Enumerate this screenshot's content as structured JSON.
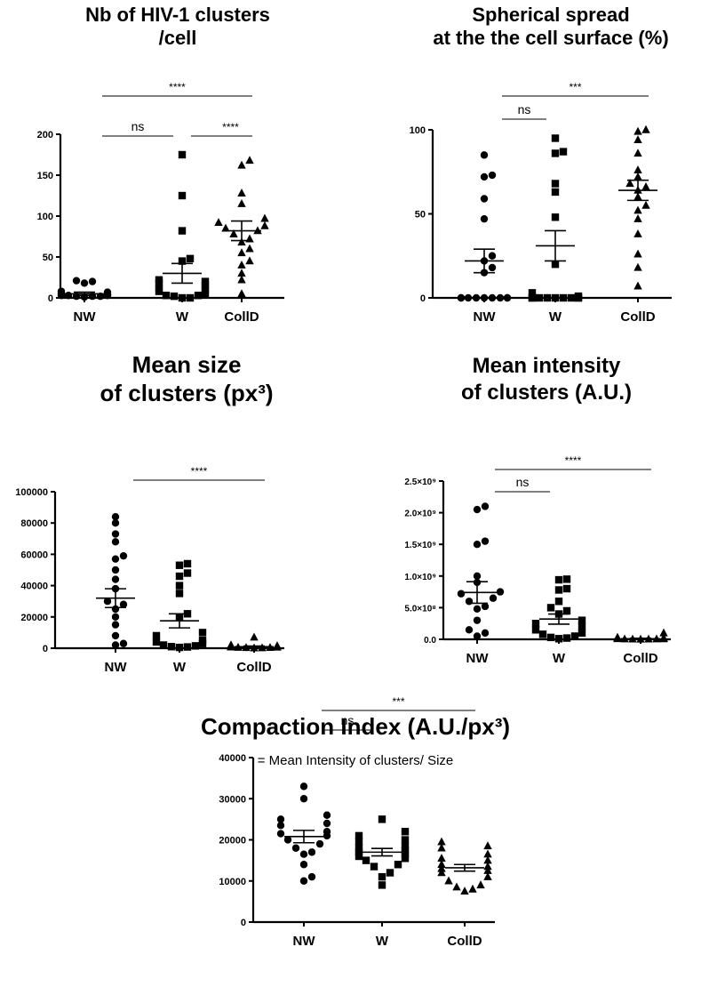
{
  "chart_data": [
    {
      "type": "scatter",
      "title_lines": [
        "Nb of HIV-1 clusters",
        "/cell"
      ],
      "categories": [
        "NW",
        "W",
        "CollD"
      ],
      "y_ticks": [
        "0",
        "50",
        "100",
        "150",
        "200"
      ],
      "ylim": [
        0,
        200
      ],
      "series": [
        {
          "values": [
            2,
            3,
            4,
            5,
            6,
            20,
            21,
            18,
            8,
            3,
            2,
            5,
            4,
            7,
            3,
            2,
            1,
            4
          ],
          "marker": "circle",
          "mean": 5,
          "sem": 2
        },
        {
          "values": [
            175,
            125,
            82,
            48,
            45,
            22,
            20,
            18,
            15,
            12,
            10,
            8,
            5,
            3,
            3,
            2,
            0,
            0
          ],
          "marker": "square",
          "mean": 30,
          "sem": 12
        },
        {
          "values": [
            168,
            162,
            128,
            115,
            97,
            92,
            88,
            85,
            82,
            78,
            72,
            68,
            60,
            55,
            45,
            40,
            30,
            22,
            5
          ],
          "marker": "triangle",
          "mean": 82,
          "sem": 12
        }
      ],
      "significance": [
        {
          "from": 0,
          "to": 2,
          "label": "****"
        },
        {
          "from": 0,
          "to": 1,
          "label": "ns"
        },
        {
          "from": 1,
          "to": 2,
          "label": "****"
        }
      ]
    },
    {
      "type": "scatter",
      "title_lines": [
        "Spherical spread",
        "at the the cell surface (%)"
      ],
      "categories": [
        "NW",
        "W",
        "CollD"
      ],
      "y_ticks": [
        "0",
        "50",
        "100"
      ],
      "ylim": [
        0,
        100
      ],
      "series": [
        {
          "values": [
            85,
            73,
            72,
            59,
            47,
            25,
            22,
            18,
            15,
            0,
            0,
            0,
            0,
            0,
            0,
            0,
            0,
            0
          ],
          "marker": "circle",
          "mean": 22,
          "sem": 7
        },
        {
          "values": [
            95,
            87,
            86,
            68,
            63,
            48,
            20,
            3,
            1,
            0,
            0,
            0,
            0,
            0,
            0,
            0,
            0,
            0
          ],
          "marker": "square",
          "mean": 31,
          "sem": 9
        },
        {
          "values": [
            100,
            99,
            94,
            86,
            76,
            72,
            68,
            66,
            64,
            60,
            55,
            52,
            47,
            38,
            26,
            18,
            7
          ],
          "marker": "triangle",
          "mean": 64,
          "sem": 6
        }
      ],
      "significance": [
        {
          "from": 0,
          "to": 2,
          "label": "***"
        },
        {
          "from": 0,
          "to": 1,
          "label": "ns"
        }
      ]
    },
    {
      "type": "scatter",
      "title_lines": [
        "Mean size",
        "of clusters (px³)"
      ],
      "categories": [
        "NW",
        "W",
        "CollD"
      ],
      "y_ticks": [
        "0",
        "20000",
        "40000",
        "60000",
        "80000",
        "100000"
      ],
      "ylim": [
        0,
        100000
      ],
      "series": [
        {
          "values": [
            84000,
            80000,
            73000,
            68000,
            59000,
            57000,
            50000,
            44000,
            38000,
            30000,
            28000,
            25000,
            20000,
            15000,
            8000,
            3000,
            2000
          ],
          "marker": "circle",
          "mean": 32000,
          "sem": 6000
        },
        {
          "values": [
            54000,
            53000,
            48000,
            46000,
            40000,
            35000,
            22000,
            20000,
            10000,
            8000,
            5000,
            4000,
            3000,
            2000,
            1500,
            1000,
            800,
            500
          ],
          "marker": "square",
          "mean": 17500,
          "sem": 4500
        },
        {
          "values": [
            7000,
            2000,
            1500,
            1200,
            1000,
            900,
            800,
            700,
            600,
            500,
            400,
            300,
            200,
            100
          ],
          "marker": "triangle",
          "mean": 1000,
          "sem": 400
        }
      ],
      "significance": [
        {
          "from": 0,
          "to": 2,
          "label": "****"
        }
      ]
    },
    {
      "type": "scatter",
      "title_lines": [
        "Mean intensity",
        "of clusters (A.U.)"
      ],
      "categories": [
        "NW",
        "W",
        "CollD"
      ],
      "y_ticks": [
        "0.0",
        "5.0×10⁸",
        "1.0×10⁹",
        "1.5×10⁹",
        "2.0×10⁹",
        "2.5×10⁹"
      ],
      "ylim": [
        0,
        2500000000
      ],
      "series": [
        {
          "values": [
            2100000000,
            2050000000,
            1550000000,
            1500000000,
            1000000000,
            900000000,
            750000000,
            720000000,
            650000000,
            600000000,
            520000000,
            480000000,
            300000000,
            150000000,
            100000000,
            50000000
          ],
          "marker": "circle",
          "mean": 740000000,
          "sem": 170000000
        },
        {
          "values": [
            950000000,
            940000000,
            800000000,
            780000000,
            600000000,
            500000000,
            450000000,
            400000000,
            300000000,
            250000000,
            200000000,
            150000000,
            100000000,
            80000000,
            50000000,
            30000000,
            20000000,
            10000000
          ],
          "marker": "square",
          "mean": 320000000,
          "sem": 80000000
        },
        {
          "values": [
            100000000,
            30000000,
            20000000,
            15000000,
            10000000,
            8000000,
            6000000,
            5000000,
            4000000,
            3000000,
            2000000,
            1000000
          ],
          "marker": "triangle",
          "mean": 10000000,
          "sem": 6000000
        }
      ],
      "significance": [
        {
          "from": 0,
          "to": 2,
          "label": "****"
        },
        {
          "from": 0,
          "to": 1,
          "label": "ns"
        }
      ]
    },
    {
      "type": "scatter",
      "title_lines": [
        "Compaction Index (A.U./px³)"
      ],
      "subtitle": "= Mean Intensity of clusters/ Size",
      "categories": [
        "NW",
        "W",
        "CollD"
      ],
      "y_ticks": [
        "0",
        "10000",
        "20000",
        "30000",
        "40000"
      ],
      "ylim": [
        0,
        40000
      ],
      "series": [
        {
          "values": [
            33000,
            30000,
            26000,
            25000,
            24000,
            23500,
            22000,
            21500,
            21000,
            20000,
            19000,
            18000,
            17000,
            16500,
            14000,
            11000,
            10000
          ],
          "marker": "circle",
          "mean": 20800,
          "sem": 1500
        },
        {
          "values": [
            25000,
            22000,
            21000,
            20000,
            19500,
            18500,
            18000,
            17500,
            17000,
            16500,
            16000,
            15500,
            15000,
            14000,
            13500,
            12000,
            11000,
            9000
          ],
          "marker": "square",
          "mean": 17000,
          "sem": 900
        },
        {
          "values": [
            19500,
            18500,
            18000,
            16500,
            15500,
            15000,
            14000,
            13500,
            13000,
            12500,
            12000,
            11000,
            10000,
            9000,
            8500,
            8000,
            7500
          ],
          "marker": "triangle",
          "mean": 13200,
          "sem": 800
        }
      ],
      "significance": [
        {
          "from": 0,
          "to": 2,
          "label": "***"
        },
        {
          "from": 0,
          "to": 1,
          "label": "ns"
        }
      ]
    }
  ]
}
